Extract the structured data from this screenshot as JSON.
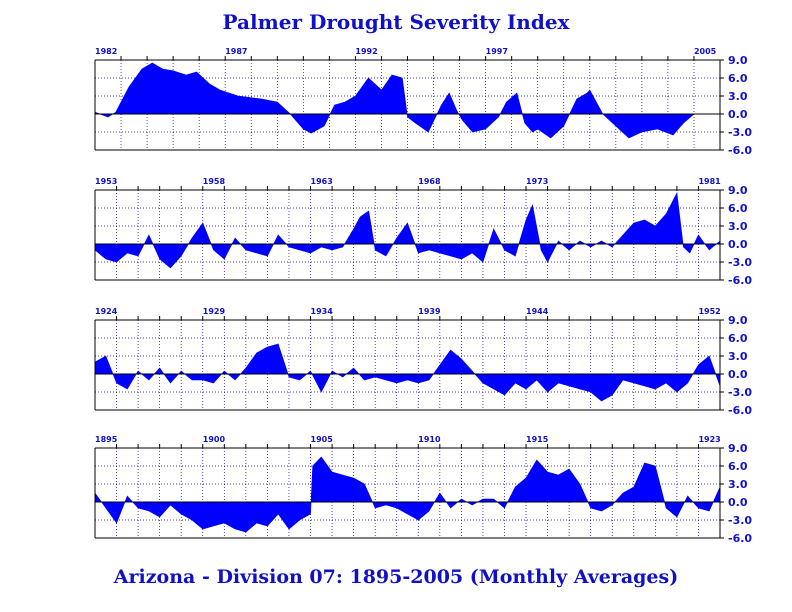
{
  "title": "Palmer Drought Severity Index",
  "footer": "Arizona - Division 07:  1895-2005 (Monthly Averages)",
  "colors": {
    "fill": "#0000ff",
    "text": "#1010c8",
    "grid": "#0000aa",
    "axis": "#000000"
  },
  "chart_data": [
    {
      "type": "area",
      "start": 1982,
      "end": 2006,
      "year_labels": [
        "1982",
        "1987",
        "1992",
        "1997",
        "2005"
      ],
      "y_ticks": [
        "9.0",
        "6.0",
        "3.0",
        "0.0",
        "-3.0",
        "-6.0"
      ],
      "ylim": [
        -6,
        9
      ],
      "grid": true,
      "x": [
        1982,
        1982.5,
        1982.8,
        1983.3,
        1983.8,
        1984.2,
        1984.6,
        1985,
        1985.5,
        1985.9,
        1986.4,
        1986.8,
        1987.5,
        1988.4,
        1989,
        1989.5,
        1990,
        1990.3,
        1990.8,
        1991.2,
        1991.6,
        1992,
        1992.5,
        1993,
        1993.4,
        1993.8,
        1994,
        1994.3,
        1994.8,
        1995.3,
        1995.6,
        1995.9,
        1996.1,
        1996.5,
        1997,
        1997.5,
        1997.8,
        1998.2,
        1998.5,
        1998.8,
        1999,
        1999.5,
        2000,
        2000.5,
        2000.9,
        2001,
        2001.5,
        2002,
        2002.5,
        2003,
        2003.6,
        2004.2,
        2004.6,
        2005
      ],
      "values": [
        0.3,
        -0.5,
        0.3,
        4.5,
        7.5,
        8.5,
        7.5,
        7.2,
        6.5,
        7,
        5,
        4,
        3,
        2.5,
        2,
        0,
        -2.5,
        -3.2,
        -2,
        1.5,
        2,
        3,
        6,
        4,
        6.5,
        6,
        -0.5,
        -1.5,
        -3,
        1.5,
        3.5,
        0.5,
        -1,
        -3,
        -2.5,
        -0.5,
        2,
        3.5,
        -1.5,
        -3,
        -2.5,
        -4,
        -2,
        2.5,
        3.5,
        4,
        0,
        -2,
        -4,
        -3,
        -2.5,
        -3.5,
        -1.5,
        0
      ]
    },
    {
      "type": "area",
      "start": 1953,
      "end": 1982,
      "year_labels": [
        "1953",
        "1958",
        "1963",
        "1968",
        "1973",
        "1981"
      ],
      "y_ticks": [
        "9.0",
        "6.0",
        "3.0",
        "0.0",
        "-3.0",
        "-6.0"
      ],
      "ylim": [
        -6,
        9
      ],
      "grid": true,
      "x": [
        1953,
        1953.5,
        1954,
        1954.5,
        1955,
        1955.5,
        1956,
        1956.5,
        1957,
        1957.5,
        1958,
        1958.5,
        1959,
        1959.5,
        1960,
        1960.5,
        1961,
        1961.5,
        1962,
        1962.5,
        1963,
        1963.5,
        1964,
        1964.5,
        1965,
        1965.3,
        1965.7,
        1966,
        1966.5,
        1967,
        1967.5,
        1968,
        1968.5,
        1969,
        1969.5,
        1970,
        1970.5,
        1971,
        1971.5,
        1972,
        1972.5,
        1973,
        1973.3,
        1973.7,
        1974,
        1974.5,
        1975,
        1975.5,
        1976,
        1976.5,
        1977,
        1977.5,
        1978,
        1978.5,
        1979,
        1979.5,
        1980,
        1980.3,
        1980.6,
        1981,
        1981.5,
        1982
      ],
      "values": [
        -1,
        -2.5,
        -3,
        -1.5,
        -2,
        1.5,
        -2.5,
        -4,
        -2,
        1,
        3.5,
        -1,
        -2.5,
        1,
        -1,
        -1.5,
        -2,
        1.5,
        -0.5,
        -1,
        -1.5,
        -0.5,
        -1,
        -0.5,
        2.5,
        4.5,
        5.5,
        -1,
        -2,
        1,
        3.5,
        -1.5,
        -1,
        -1.5,
        -2,
        -2.5,
        -1.5,
        -3,
        2.5,
        -1,
        -2,
        4,
        6.5,
        -1,
        -3,
        0.5,
        -1,
        0.5,
        -0.5,
        0.5,
        -0.5,
        1.5,
        3.5,
        4,
        3,
        5,
        8.5,
        -0.5,
        -1.5,
        1.5,
        -1,
        0.5
      ]
    },
    {
      "type": "area",
      "start": 1924,
      "end": 1953,
      "year_labels": [
        "1924",
        "1929",
        "1934",
        "1939",
        "1944",
        "1952"
      ],
      "y_ticks": [
        "9.0",
        "6.0",
        "3.0",
        "0.0",
        "-3.0",
        "-6.0"
      ],
      "ylim": [
        -6,
        9
      ],
      "grid": true,
      "x": [
        1924,
        1924.5,
        1925,
        1925.5,
        1926,
        1926.5,
        1927,
        1927.5,
        1928,
        1928.5,
        1929,
        1929.5,
        1930,
        1930.5,
        1931,
        1931.5,
        1932,
        1932.5,
        1933,
        1933.5,
        1934,
        1934.5,
        1935,
        1935.5,
        1936,
        1936.5,
        1937,
        1937.5,
        1938,
        1938.5,
        1939,
        1939.5,
        1940,
        1940.5,
        1941,
        1941.5,
        1942,
        1942.5,
        1943,
        1943.5,
        1944,
        1944.5,
        1945,
        1945.5,
        1946,
        1946.5,
        1947,
        1947.5,
        1948,
        1948.5,
        1949,
        1949.5,
        1950,
        1950.5,
        1951,
        1951.5,
        1952,
        1952.5,
        1953
      ],
      "values": [
        2,
        3,
        -1.5,
        -2.5,
        0.5,
        -1,
        1,
        -1.5,
        0.5,
        -1,
        -1,
        -1.5,
        0.5,
        -1,
        1,
        3.5,
        4.5,
        5,
        -0.5,
        -1,
        0.5,
        -3,
        0.5,
        -0.5,
        1,
        -1,
        -0.5,
        -1,
        -1.5,
        -1,
        -1.5,
        -1,
        1.5,
        4,
        2.5,
        0.5,
        -1.5,
        -2.5,
        -3.5,
        -1.5,
        -2.5,
        -1,
        -3,
        -1.5,
        -2,
        -2.5,
        -3,
        -4.5,
        -3.5,
        -1,
        -1.5,
        -2,
        -2.5,
        -1.5,
        -3,
        -1.5,
        1.5,
        3,
        -2
      ]
    },
    {
      "type": "area",
      "start": 1895,
      "end": 1924,
      "year_labels": [
        "1895",
        "1900",
        "1905",
        "1910",
        "1915",
        "1923"
      ],
      "y_ticks": [
        "9.0",
        "6.0",
        "3.0",
        "0.0",
        "-3.0",
        "-6.0"
      ],
      "ylim": [
        -6,
        9
      ],
      "grid": true,
      "x": [
        1895,
        1895.5,
        1896,
        1896.5,
        1897,
        1897.5,
        1898,
        1898.5,
        1899,
        1899.5,
        1900,
        1900.5,
        1901,
        1901.5,
        1902,
        1902.5,
        1903,
        1903.5,
        1904,
        1904.5,
        1905,
        1905.1,
        1905.5,
        1906,
        1906.5,
        1907,
        1907.5,
        1908,
        1908.5,
        1909,
        1909.5,
        1910,
        1910.5,
        1911,
        1911.5,
        1912,
        1912.5,
        1913,
        1913.5,
        1914,
        1914.5,
        1915,
        1915.5,
        1916,
        1916.5,
        1917,
        1917.5,
        1918,
        1918.5,
        1919,
        1919.5,
        1920,
        1920.5,
        1921,
        1921.5,
        1922,
        1922.5,
        1923,
        1923.5,
        1924
      ],
      "values": [
        1.5,
        -1,
        -3.5,
        1,
        -1,
        -1.5,
        -2.5,
        -0.5,
        -2,
        -3,
        -4.5,
        -4,
        -3.5,
        -4.5,
        -5,
        -3.5,
        -4,
        -2,
        -4.5,
        -3,
        -2,
        6,
        7.5,
        5,
        4.5,
        4,
        3,
        -1,
        -0.5,
        -1,
        -2,
        -3,
        -1.5,
        1.5,
        -1,
        0.5,
        -0.5,
        0.5,
        0.5,
        -1,
        2.5,
        4,
        7,
        5,
        4.5,
        5.5,
        3,
        -1,
        -1.5,
        -0.5,
        1.5,
        2.5,
        6.5,
        6,
        -1,
        -2.5,
        1,
        -1,
        -1.5,
        2.5
      ]
    }
  ]
}
